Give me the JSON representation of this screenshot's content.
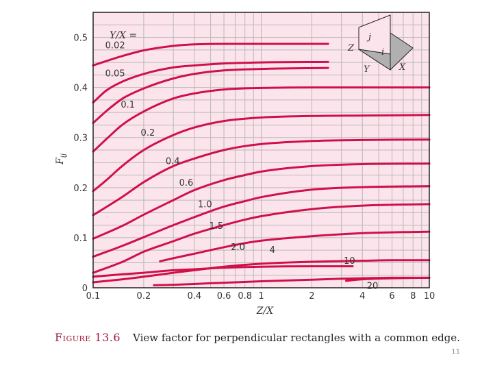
{
  "chart_data": {
    "type": "line",
    "xscale": "log",
    "xlim": [
      0.1,
      10
    ],
    "ylim": [
      0,
      0.55
    ],
    "grid": true,
    "xlabel": "Z/X",
    "ylabel": "F_ij",
    "ylabel_main": "F",
    "ylabel_sub": "ij",
    "xticks": [
      0.1,
      0.2,
      0.4,
      0.6,
      0.8,
      1,
      2,
      4,
      6,
      8,
      10
    ],
    "xtick_labels": [
      "0.1",
      "0.2",
      "0.4",
      "0.6",
      "0.8",
      "1",
      "2",
      "4",
      "6",
      "8",
      "10"
    ],
    "yticks": [
      0,
      0.1,
      0.2,
      0.3,
      0.4,
      0.5
    ],
    "ytick_labels": [
      "0",
      "0.1",
      "0.2",
      "0.3",
      "0.4",
      "0.5"
    ],
    "legend_header": "Y/X =",
    "series": [
      {
        "name": "0.02",
        "x": [
          0.1,
          0.15,
          0.2,
          0.3,
          0.4,
          0.6,
          1,
          2.5
        ],
        "y": [
          0.444,
          0.463,
          0.474,
          0.483,
          0.486,
          0.487,
          0.487,
          0.487
        ]
      },
      {
        "name": "0.05",
        "x": [
          0.1,
          0.12,
          0.15,
          0.2,
          0.3,
          0.4,
          0.6,
          1,
          2.5
        ],
        "y": [
          0.37,
          0.394,
          0.412,
          0.427,
          0.44,
          0.444,
          0.448,
          0.45,
          0.451
        ]
      },
      {
        "name": "0.1",
        "x": [
          0.1,
          0.12,
          0.15,
          0.2,
          0.3,
          0.4,
          0.6,
          1,
          2.5
        ],
        "y": [
          0.329,
          0.353,
          0.378,
          0.398,
          0.418,
          0.427,
          0.434,
          0.437,
          0.439
        ]
      },
      {
        "name": "0.2",
        "x": [
          0.1,
          0.12,
          0.15,
          0.2,
          0.3,
          0.4,
          0.6,
          1,
          2,
          4,
          10
        ],
        "y": [
          0.272,
          0.297,
          0.326,
          0.352,
          0.378,
          0.388,
          0.396,
          0.399,
          0.4,
          0.4,
          0.4
        ]
      },
      {
        "name": "0.4",
        "x": [
          0.1,
          0.12,
          0.15,
          0.2,
          0.3,
          0.4,
          0.6,
          1,
          2,
          4,
          10
        ],
        "y": [
          0.193,
          0.215,
          0.244,
          0.275,
          0.305,
          0.32,
          0.333,
          0.34,
          0.343,
          0.344,
          0.345
        ]
      },
      {
        "name": "0.6",
        "x": [
          0.1,
          0.15,
          0.2,
          0.3,
          0.4,
          0.6,
          0.8,
          1,
          2,
          4,
          10
        ],
        "y": [
          0.145,
          0.182,
          0.211,
          0.243,
          0.258,
          0.275,
          0.283,
          0.287,
          0.293,
          0.295,
          0.296
        ]
      },
      {
        "name": "1.0",
        "x": [
          0.1,
          0.15,
          0.2,
          0.3,
          0.4,
          0.6,
          0.8,
          1,
          2,
          4,
          10
        ],
        "y": [
          0.098,
          0.124,
          0.146,
          0.175,
          0.195,
          0.215,
          0.225,
          0.232,
          0.243,
          0.247,
          0.248
        ]
      },
      {
        "name": "1.5",
        "x": [
          0.1,
          0.15,
          0.2,
          0.3,
          0.4,
          0.6,
          0.8,
          1,
          2,
          4,
          10
        ],
        "y": [
          0.062,
          0.084,
          0.101,
          0.125,
          0.141,
          0.162,
          0.173,
          0.181,
          0.196,
          0.201,
          0.203
        ]
      },
      {
        "name": "2.0",
        "x": [
          0.1,
          0.15,
          0.2,
          0.3,
          0.4,
          0.6,
          0.8,
          1,
          2,
          4,
          10
        ],
        "y": [
          0.03,
          0.052,
          0.072,
          0.093,
          0.108,
          0.125,
          0.136,
          0.143,
          0.157,
          0.164,
          0.167
        ]
      },
      {
        "name": "4",
        "x": [
          0.25,
          0.3,
          0.4,
          0.6,
          0.8,
          1,
          2,
          4,
          10
        ],
        "y": [
          0.053,
          0.059,
          0.068,
          0.081,
          0.089,
          0.094,
          0.103,
          0.109,
          0.112
        ]
      },
      {
        "name": "10",
        "x": [
          0.1,
          0.15,
          0.2,
          0.3,
          0.4,
          0.6,
          1,
          2,
          4,
          6,
          10
        ],
        "y": [
          0.011,
          0.017,
          0.022,
          0.03,
          0.035,
          0.042,
          0.048,
          0.052,
          0.054,
          0.055,
          0.055
        ]
      },
      {
        "name": "20",
        "x": [
          0.23,
          0.3,
          0.5,
          1,
          2,
          3,
          4,
          6,
          10
        ],
        "y": [
          0.005,
          0.006,
          0.009,
          0.013,
          0.016,
          0.018,
          0.019,
          0.02,
          0.02
        ]
      },
      {
        "name": "",
        "x": [
          0.1,
          0.15,
          0.2,
          0.3,
          0.4,
          0.6,
          1,
          2,
          3.5
        ],
        "y": [
          0.022,
          0.027,
          0.03,
          0.035,
          0.037,
          0.04,
          0.042,
          0.043,
          0.043
        ]
      },
      {
        "name": "",
        "x": [
          3.2,
          4,
          6,
          10
        ],
        "y": [
          0.014,
          0.017,
          0.019,
          0.02
        ]
      }
    ],
    "curve_labels": [
      {
        "text": "0.02",
        "x": 0.118,
        "y": 0.478
      },
      {
        "text": "0.05",
        "x": 0.118,
        "y": 0.422
      },
      {
        "text": "0.1",
        "x": 0.146,
        "y": 0.36
      },
      {
        "text": "0.2",
        "x": 0.192,
        "y": 0.304
      },
      {
        "text": "0.4",
        "x": 0.27,
        "y": 0.247
      },
      {
        "text": "0.6",
        "x": 0.325,
        "y": 0.204
      },
      {
        "text": "1.0",
        "x": 0.42,
        "y": 0.161
      },
      {
        "text": "1.5",
        "x": 0.49,
        "y": 0.118
      },
      {
        "text": "2.0",
        "x": 0.66,
        "y": 0.075
      },
      {
        "text": "4",
        "x": 1.12,
        "y": 0.07
      },
      {
        "text": "10",
        "x": 3.1,
        "y": 0.048
      },
      {
        "text": "20",
        "x": 4.25,
        "y": -0.002
      }
    ],
    "inset_labels": {
      "j": "j",
      "i": "i",
      "Z": "Z",
      "Y": "Y",
      "X": "X"
    },
    "colors": {
      "background": "#fce4ec",
      "curve": "#d0104a",
      "grid": "#b9b9b9",
      "frame": "#222222",
      "inset_face": "#b0b0b0"
    }
  },
  "caption": {
    "figure_number": "Figure 13.6",
    "text": "View factor for perpendicular rectangles with a common edge."
  },
  "page_number": "11"
}
